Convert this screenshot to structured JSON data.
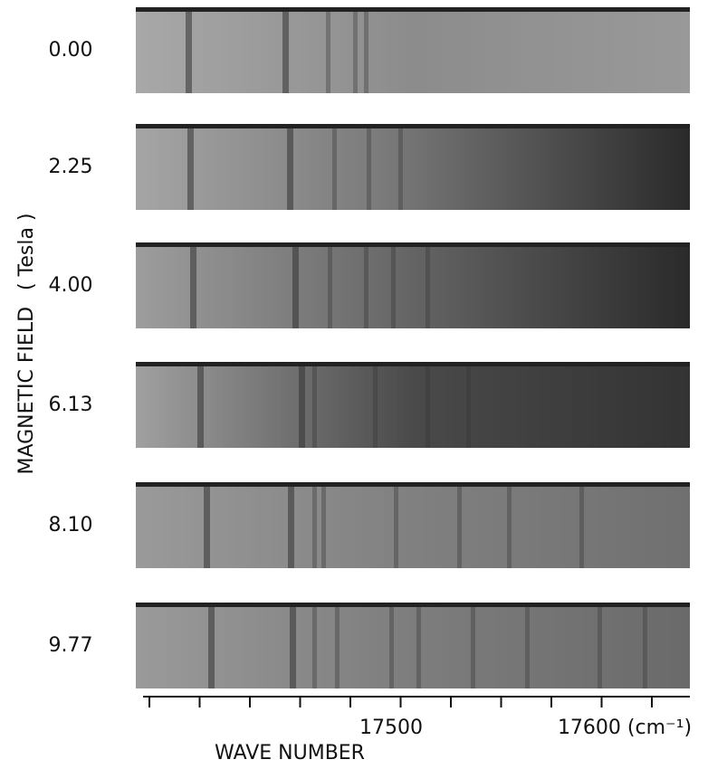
{
  "y_axis": {
    "title": "MAGNETIC FIELD",
    "unit": "( Tesla )"
  },
  "panels": [
    {
      "label": "0.00"
    },
    {
      "label": "2.25"
    },
    {
      "label": "4.00"
    },
    {
      "label": "6.13"
    },
    {
      "label": "8.10"
    },
    {
      "label": "9.77"
    }
  ],
  "x_axis": {
    "title": "WAVE NUMBER",
    "tick_labels": [
      "17500",
      "17600 (cm⁻¹)"
    ]
  }
}
